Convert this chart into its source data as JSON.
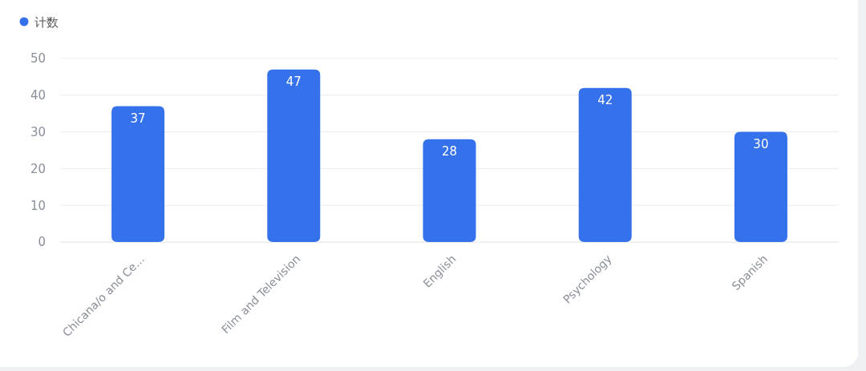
{
  "chart_data": {
    "type": "bar",
    "categories": [
      "Chicana/o and Ce…",
      "Film and Television",
      "English",
      "Psychology",
      "Spanish"
    ],
    "series": [
      {
        "name": "计数",
        "color": "#3471eb",
        "values": [
          37,
          47,
          28,
          42,
          30
        ]
      }
    ],
    "ylim": [
      0,
      50
    ],
    "yticks": [
      0,
      10,
      20,
      30,
      40,
      50
    ],
    "grid": "y",
    "legend": "top left",
    "data_labels": true
  }
}
